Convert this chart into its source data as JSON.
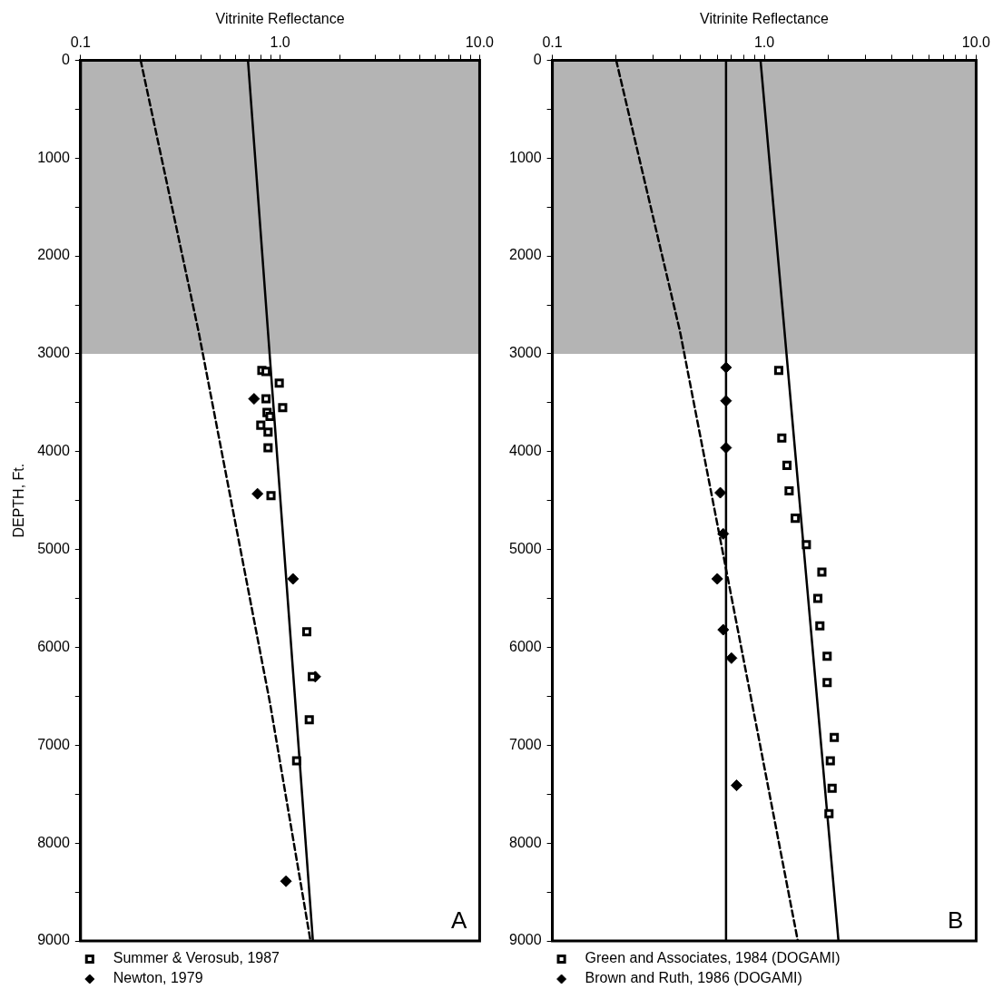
{
  "chart_data": [
    {
      "type": "scatter",
      "xlabel": "Vitrinite Reflectance",
      "ylabel": "DEPTH, Ft.",
      "log": "x",
      "grid": false,
      "legend": "bottom left",
      "xlim": [
        0.1,
        10
      ],
      "xticks": [
        {
          "value": 0.1,
          "label": "0.1"
        },
        {
          "value": 0.2,
          "label": null
        },
        {
          "value": 0.3,
          "label": null
        },
        {
          "value": 0.4,
          "label": null
        },
        {
          "value": 0.5,
          "label": null
        },
        {
          "value": 0.6,
          "label": null
        },
        {
          "value": 0.7,
          "label": null
        },
        {
          "value": 0.8,
          "label": null
        },
        {
          "value": 0.9,
          "label": null
        },
        {
          "value": 1,
          "label": "1.0"
        },
        {
          "value": 2,
          "label": null
        },
        {
          "value": 3,
          "label": null
        },
        {
          "value": 4,
          "label": null
        },
        {
          "value": 5,
          "label": null
        },
        {
          "value": 6,
          "label": null
        },
        {
          "value": 7,
          "label": null
        },
        {
          "value": 8,
          "label": null
        },
        {
          "value": 9,
          "label": null
        },
        {
          "value": 10,
          "label": "10.0"
        }
      ],
      "ylim": [
        9000,
        0
      ],
      "yticks": [
        0,
        {
          "value": 500,
          "label": null
        },
        1000,
        {
          "value": 1500,
          "label": null
        },
        2000,
        {
          "value": 2500,
          "label": null
        },
        3000,
        {
          "value": 3500,
          "label": null
        },
        4000,
        {
          "value": 4500,
          "label": null
        },
        5000,
        {
          "value": 5500,
          "label": null
        },
        6000,
        {
          "value": 6500,
          "label": null
        },
        7000,
        {
          "value": 7500,
          "label": null
        },
        8000,
        {
          "value": 8500,
          "label": null
        },
        9000
      ],
      "bands": [
        {
          "axis": "y",
          "from": 0,
          "to": 3000,
          "color": "#b4b4b4"
        }
      ],
      "annotations": [
        "A"
      ],
      "series": [
        {
          "name": "Summer & Verosub, 1987",
          "type": "scatter",
          "marker": "square",
          "color": "#000000",
          "x": [
            0.81,
            0.85,
            0.99,
            0.85,
            1.03,
            0.86,
            0.89,
            0.8,
            0.87,
            0.87,
            0.9,
            1.36,
            1.45,
            1.4,
            1.21
          ],
          "values": [
            3170,
            3180,
            3300,
            3460,
            3550,
            3600,
            3640,
            3730,
            3800,
            3960,
            4450,
            5840,
            6300,
            6740,
            7160
          ]
        },
        {
          "name": "Newton, 1979",
          "type": "scatter",
          "marker": "diamond",
          "color": "#000000",
          "x": [
            0.74,
            0.77,
            1.16,
            1.5,
            1.07
          ],
          "values": [
            3460,
            4430,
            5300,
            6300,
            8390
          ]
        },
        {
          "type": "line",
          "marker": "none",
          "line_style": "solid",
          "color": "#000000",
          "x": [
            0.69,
            1.46
          ],
          "values": [
            0,
            9000
          ]
        },
        {
          "type": "line",
          "marker": "none",
          "line_style": "dashed",
          "color": "#000000",
          "x": [
            0.2,
            0.39,
            0.89,
            1.42
          ],
          "values": [
            0,
            2770,
            6570,
            9000
          ]
        }
      ]
    },
    {
      "type": "scatter",
      "xlabel": "Vitrinite Reflectance",
      "log": "x",
      "grid": false,
      "legend": "bottom left",
      "xlim": [
        0.1,
        10
      ],
      "xticks": [
        {
          "value": 0.1,
          "label": "0.1"
        },
        {
          "value": 0.2,
          "label": null
        },
        {
          "value": 0.3,
          "label": null
        },
        {
          "value": 0.4,
          "label": null
        },
        {
          "value": 0.5,
          "label": null
        },
        {
          "value": 0.6,
          "label": null
        },
        {
          "value": 0.7,
          "label": null
        },
        {
          "value": 0.8,
          "label": null
        },
        {
          "value": 0.9,
          "label": null
        },
        {
          "value": 1,
          "label": "1.0"
        },
        {
          "value": 2,
          "label": null
        },
        {
          "value": 3,
          "label": null
        },
        {
          "value": 4,
          "label": null
        },
        {
          "value": 5,
          "label": null
        },
        {
          "value": 6,
          "label": null
        },
        {
          "value": 7,
          "label": null
        },
        {
          "value": 8,
          "label": null
        },
        {
          "value": 9,
          "label": null
        },
        {
          "value": 10,
          "label": "10.0"
        }
      ],
      "ylim": [
        9000,
        0
      ],
      "yticks": [
        0,
        {
          "value": 500,
          "label": null
        },
        1000,
        {
          "value": 1500,
          "label": null
        },
        2000,
        {
          "value": 2500,
          "label": null
        },
        3000,
        {
          "value": 3500,
          "label": null
        },
        4000,
        {
          "value": 4500,
          "label": null
        },
        5000,
        {
          "value": 5500,
          "label": null
        },
        6000,
        {
          "value": 6500,
          "label": null
        },
        7000,
        {
          "value": 7500,
          "label": null
        },
        8000,
        {
          "value": 8500,
          "label": null
        },
        9000
      ],
      "bands": [
        {
          "axis": "y",
          "from": 0,
          "to": 3000,
          "color": "#b4b4b4"
        }
      ],
      "annotations": [
        "B"
      ],
      "series": [
        {
          "name": "Green and Associates, 1984 (DOGAMI)",
          "type": "scatter",
          "marker": "square",
          "color": "#000000",
          "x": [
            1.17,
            1.21,
            1.28,
            1.31,
            1.4,
            1.58,
            1.87,
            1.79,
            1.83,
            1.98,
            1.98,
            2.14,
            2.05,
            2.09,
            2.02
          ],
          "values": [
            3170,
            3860,
            4140,
            4400,
            4680,
            4950,
            5230,
            5500,
            5780,
            6090,
            6360,
            6920,
            7160,
            7440,
            7700
          ]
        },
        {
          "name": "Brown and Ruth, 1986 (DOGAMI)",
          "type": "scatter",
          "marker": "diamond",
          "color": "#000000",
          "x": [
            0.66,
            0.66,
            0.66,
            0.62,
            0.64,
            0.6,
            0.64,
            0.7,
            0.74
          ],
          "values": [
            3140,
            3480,
            3960,
            4420,
            4840,
            5300,
            5820,
            6110,
            7410
          ]
        },
        {
          "type": "line",
          "marker": "none",
          "line_style": "solid",
          "color": "#000000",
          "x": [
            0.66,
            0.66
          ],
          "values": [
            0,
            9000
          ]
        },
        {
          "type": "line",
          "marker": "none",
          "line_style": "solid",
          "color": "#000000",
          "x": [
            0.96,
            2.24
          ],
          "values": [
            0,
            9000
          ]
        },
        {
          "type": "line",
          "marker": "none",
          "line_style": "dashed",
          "color": "#000000",
          "x": [
            0.2,
            0.4,
            0.87,
            1.44
          ],
          "values": [
            0,
            2770,
            6540,
            9000
          ]
        }
      ]
    }
  ]
}
